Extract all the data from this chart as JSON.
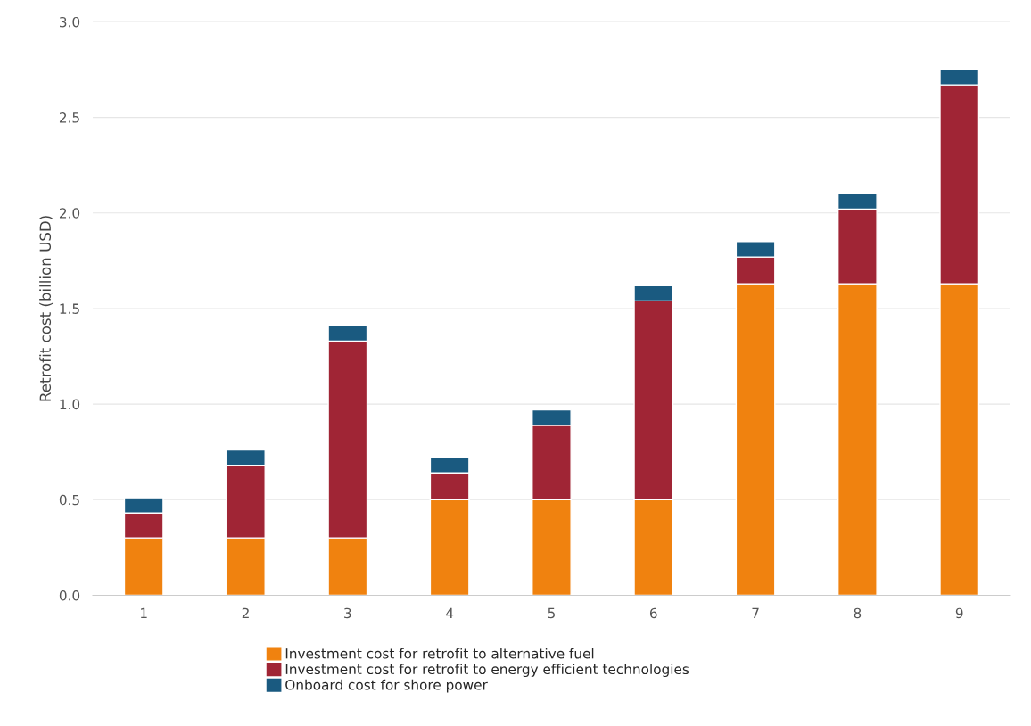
{
  "chart_data": {
    "type": "bar",
    "stacked": true,
    "ylabel": "Retrofit cost (billion USD)",
    "categories": [
      "1",
      "2",
      "3",
      "4",
      "5",
      "6",
      "7",
      "8",
      "9"
    ],
    "series": [
      {
        "name": "Investment cost for retrofit to alternative fuel",
        "color": "#f0820f",
        "values": [
          0.3,
          0.3,
          0.3,
          0.5,
          0.5,
          0.5,
          1.63,
          1.63,
          1.63
        ]
      },
      {
        "name": "Investment cost for retrofit to energy efficient technologies",
        "color": "#a02535",
        "values": [
          0.13,
          0.38,
          1.03,
          0.14,
          0.39,
          1.04,
          0.14,
          0.39,
          1.04
        ]
      },
      {
        "name": "Onboard cost for shore power",
        "color": "#1a5a80",
        "values": [
          0.08,
          0.08,
          0.08,
          0.08,
          0.08,
          0.08,
          0.08,
          0.08,
          0.08
        ]
      }
    ],
    "ylim": [
      0,
      3.0
    ],
    "yticks": [
      {
        "value": 0,
        "label": "0.0"
      },
      0.5,
      {
        "value": 1,
        "label": "1.0"
      },
      1.5,
      {
        "value": 2,
        "label": "2.0"
      },
      2.5,
      {
        "value": 3,
        "label": "3.0"
      }
    ],
    "grid": "y",
    "legend": "bottom"
  }
}
